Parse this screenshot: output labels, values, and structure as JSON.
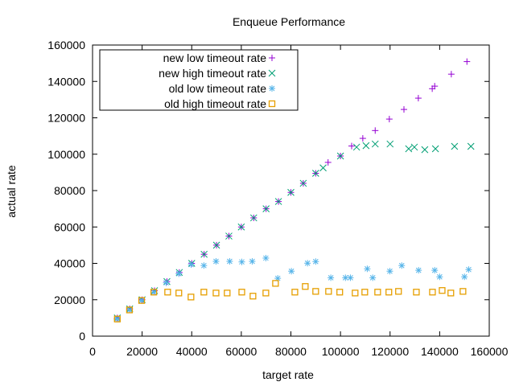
{
  "chart_data": {
    "type": "scatter",
    "title": "Enqueue Performance",
    "xlabel": "target rate",
    "ylabel": "actual rate",
    "xlim": [
      0,
      160000
    ],
    "ylim": [
      0,
      160000
    ],
    "xticks": [
      0,
      20000,
      40000,
      60000,
      80000,
      100000,
      120000,
      140000,
      160000
    ],
    "yticks": [
      0,
      20000,
      40000,
      60000,
      80000,
      100000,
      120000,
      140000,
      160000
    ],
    "grid": false,
    "legend_position": "top-left",
    "series": [
      {
        "name": "new low timeout rate",
        "marker": "plus",
        "color": "#9400d3",
        "points": [
          [
            10000,
            10000
          ],
          [
            15000,
            15000
          ],
          [
            20000,
            20000
          ],
          [
            25000,
            25000
          ],
          [
            30000,
            30000
          ],
          [
            35000,
            35000
          ],
          [
            40000,
            40000
          ],
          [
            45000,
            45000
          ],
          [
            50000,
            50000
          ],
          [
            55000,
            55000
          ],
          [
            60000,
            60000
          ],
          [
            65000,
            65000
          ],
          [
            70000,
            70000
          ],
          [
            75000,
            74000
          ],
          [
            80000,
            79000
          ],
          [
            85000,
            84000
          ],
          [
            90000,
            89500
          ],
          [
            95000,
            95500
          ],
          [
            100000,
            99000
          ],
          [
            104500,
            104500
          ],
          [
            109000,
            108700
          ],
          [
            114000,
            113000
          ],
          [
            119700,
            119300
          ],
          [
            125600,
            124600
          ],
          [
            131400,
            130800
          ],
          [
            137000,
            136000
          ],
          [
            138000,
            137400
          ],
          [
            144700,
            144000
          ],
          [
            151000,
            150900
          ]
        ]
      },
      {
        "name": "new high timeout rate",
        "marker": "cross",
        "color": "#009e73",
        "points": [
          [
            10000,
            10000
          ],
          [
            15000,
            15000
          ],
          [
            20000,
            20000
          ],
          [
            25000,
            25000
          ],
          [
            30000,
            30000
          ],
          [
            35000,
            35000
          ],
          [
            40000,
            40000
          ],
          [
            45000,
            45000
          ],
          [
            50000,
            50000
          ],
          [
            55000,
            55000
          ],
          [
            60000,
            60000
          ],
          [
            65000,
            65000
          ],
          [
            70000,
            70000
          ],
          [
            75000,
            74000
          ],
          [
            80000,
            79000
          ],
          [
            85000,
            84000
          ],
          [
            90000,
            89500
          ],
          [
            93000,
            92500
          ],
          [
            100000,
            99000
          ],
          [
            106500,
            103900
          ],
          [
            110300,
            104700
          ],
          [
            114000,
            105600
          ],
          [
            120000,
            105600
          ],
          [
            127500,
            103000
          ],
          [
            129800,
            103900
          ],
          [
            134000,
            102500
          ],
          [
            138300,
            103000
          ],
          [
            146000,
            104300
          ],
          [
            152600,
            104300
          ]
        ]
      },
      {
        "name": "old low timeout rate",
        "marker": "star",
        "color": "#56b4e9",
        "points": [
          [
            9800,
            9400
          ],
          [
            14900,
            14400
          ],
          [
            19800,
            19600
          ],
          [
            24700,
            24200
          ],
          [
            29700,
            29300
          ],
          [
            34800,
            34300
          ],
          [
            39800,
            39300
          ],
          [
            44900,
            38800
          ],
          [
            49800,
            41100
          ],
          [
            55300,
            41100
          ],
          [
            60200,
            40800
          ],
          [
            64400,
            41100
          ],
          [
            69900,
            42900
          ],
          [
            74700,
            31800
          ],
          [
            80200,
            35700
          ],
          [
            86700,
            40100
          ],
          [
            90000,
            41000
          ],
          [
            96100,
            32100
          ],
          [
            102000,
            32100
          ],
          [
            104000,
            32100
          ],
          [
            110800,
            37000
          ],
          [
            113000,
            32100
          ],
          [
            119900,
            35700
          ],
          [
            124700,
            38800
          ],
          [
            131500,
            36200
          ],
          [
            138000,
            36200
          ],
          [
            140000,
            32600
          ],
          [
            150000,
            32600
          ],
          [
            151700,
            36600
          ]
        ]
      },
      {
        "name": "old high timeout rate",
        "marker": "square",
        "color": "#e69f00",
        "points": [
          [
            10000,
            9400
          ],
          [
            14900,
            14400
          ],
          [
            19800,
            19600
          ],
          [
            24700,
            24200
          ],
          [
            30300,
            24200
          ],
          [
            34800,
            23700
          ],
          [
            39700,
            21500
          ],
          [
            44900,
            24200
          ],
          [
            49800,
            23700
          ],
          [
            54300,
            23700
          ],
          [
            60200,
            24200
          ],
          [
            64700,
            22000
          ],
          [
            69900,
            23700
          ],
          [
            73800,
            29000
          ],
          [
            81600,
            24200
          ],
          [
            85800,
            27300
          ],
          [
            90000,
            24600
          ],
          [
            95200,
            24600
          ],
          [
            99700,
            24200
          ],
          [
            105900,
            23700
          ],
          [
            109800,
            24200
          ],
          [
            115000,
            24200
          ],
          [
            119500,
            24200
          ],
          [
            123400,
            24600
          ],
          [
            130600,
            24200
          ],
          [
            137100,
            24200
          ],
          [
            141000,
            25100
          ],
          [
            144500,
            23700
          ],
          [
            149400,
            24600
          ]
        ]
      }
    ]
  }
}
